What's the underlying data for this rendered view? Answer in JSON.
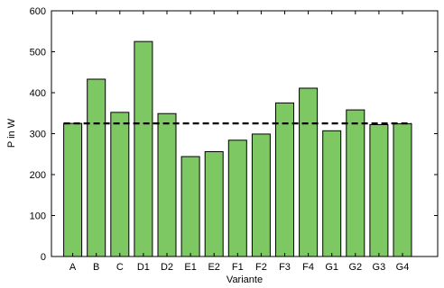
{
  "chart_data": {
    "type": "bar",
    "categories": [
      "A",
      "B",
      "C",
      "D1",
      "D2",
      "E1",
      "E2",
      "F1",
      "F2",
      "F3",
      "F4",
      "G1",
      "G2",
      "G3",
      "G4"
    ],
    "values": [
      325,
      433,
      352,
      525,
      349,
      244,
      256,
      284,
      299,
      375,
      411,
      307,
      358,
      322,
      324
    ],
    "reference_line": {
      "value": 325,
      "style": "dashed",
      "color": "#000000"
    },
    "title": "",
    "xlabel": "Variante",
    "ylabel": "P in W",
    "ylim": [
      0,
      600
    ],
    "yticks": [
      "0",
      "100",
      "200",
      "300",
      "400",
      "500",
      "600"
    ],
    "grid": false,
    "legend": "none",
    "colors": {
      "bar_fill": "#7ec864",
      "bar_stroke": "#000000",
      "axis": "#000000"
    }
  }
}
